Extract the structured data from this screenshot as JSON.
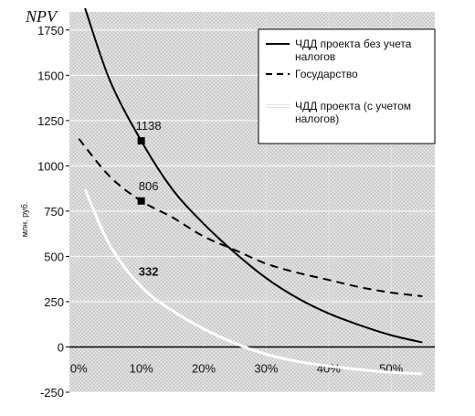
{
  "chart_data": {
    "type": "line",
    "title": "NPV",
    "ylabel": "млн. руб.",
    "xlabel": "",
    "ylim": [
      -250,
      1850
    ],
    "xlim": [
      -1.5,
      57
    ],
    "x_ticks": [
      "0%",
      "10%",
      "20%",
      "30%",
      "40%",
      "50%"
    ],
    "x_tick_values": [
      0,
      10,
      20,
      30,
      40,
      50
    ],
    "y_ticks": [
      "-250",
      "0",
      "250",
      "500",
      "750",
      "1000",
      "1250",
      "1500",
      "1750"
    ],
    "y_tick_values": [
      -250,
      0,
      250,
      500,
      750,
      1000,
      1250,
      1500,
      1750
    ],
    "grid": true,
    "legend_position": "top-right",
    "series": [
      {
        "name": "ЧДД проекта без учета налогов",
        "style": "solid",
        "color": "#000000",
        "x": [
          1,
          5,
          10,
          15,
          20,
          25,
          30,
          35,
          40,
          45,
          50,
          55
        ],
        "y": [
          1870,
          1470,
          1138,
          870,
          680,
          520,
          380,
          270,
          185,
          120,
          65,
          25
        ]
      },
      {
        "name": "Государство",
        "style": "dashed",
        "color": "#000000",
        "x": [
          0,
          5,
          10,
          15,
          20,
          25,
          30,
          35,
          40,
          45,
          50,
          55
        ],
        "y": [
          1150,
          940,
          806,
          715,
          610,
          535,
          460,
          410,
          370,
          330,
          300,
          280
        ]
      },
      {
        "name": "ЧДД проекта (с учетом налогов)",
        "style": "solid",
        "color": "#ffffff",
        "x": [
          1,
          5,
          10,
          15,
          20,
          25,
          30,
          35,
          40,
          45,
          50,
          55
        ],
        "y": [
          870,
          560,
          332,
          200,
          100,
          20,
          -40,
          -80,
          -105,
          -125,
          -140,
          -148
        ]
      }
    ],
    "annotations": [
      {
        "text": "1138",
        "x": 10,
        "y": 1138,
        "marker": true,
        "bold": false
      },
      {
        "text": "806",
        "x": 10,
        "y": 806,
        "marker": true,
        "bold": false
      },
      {
        "text": "332",
        "x": 10,
        "y": 332,
        "marker": false,
        "bold": true
      }
    ],
    "colors": {
      "background": "#ffffff",
      "plot_area": "#d8d8d8",
      "grid": "#ffffff",
      "zero_line": "#000000"
    }
  }
}
